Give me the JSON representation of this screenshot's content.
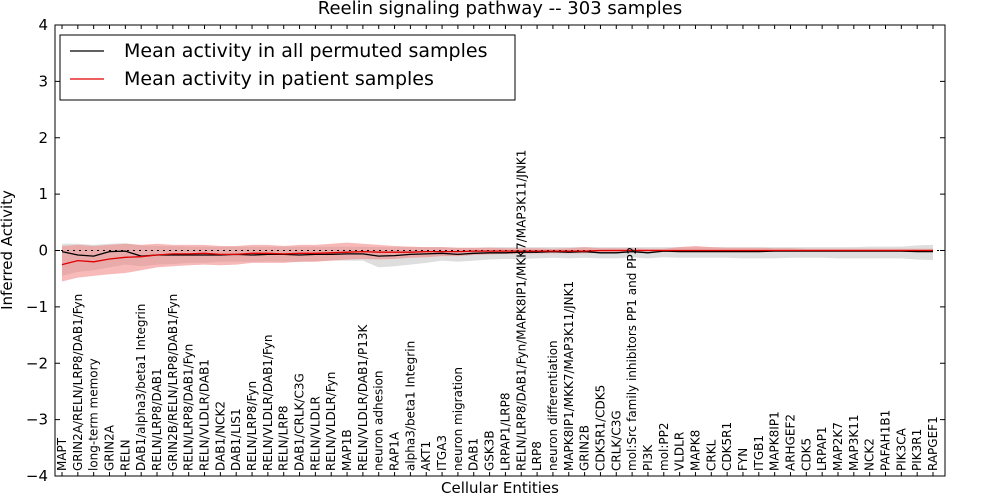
{
  "chart_data": {
    "type": "line",
    "title": "Reelin signaling pathway -- 303 samples",
    "xlabel": "Cellular Entities",
    "ylabel": "Inferred Activity",
    "ylim": [
      -4,
      4
    ],
    "yticks": [
      -4,
      -3,
      -2,
      -1,
      0,
      1,
      2,
      3,
      4
    ],
    "ytick_labels": [
      "−4",
      "−3",
      "−2",
      "−1",
      "0",
      "1",
      "2",
      "3",
      "4"
    ],
    "grid": false,
    "legend_position": "top-left",
    "colors": {
      "permuted_line": "#000000",
      "permuted_band": "#c8c8c8",
      "patient_line": "#e00000",
      "patient_band": "#f28080",
      "zero_line": "#000000"
    },
    "categories": [
      "MAPT",
      "GRIN2A/RELN/LRP8/DAB1/Fyn",
      "long-term memory",
      "GRIN2A",
      "RELN",
      "DAB1/alpha3/beta1 Integrin",
      "RELN/LRP8/DAB1",
      "GRIN2B/RELN/LRP8/DAB1/Fyn",
      "RELN/LRP8/DAB1/Fyn",
      "RELN/VLDLR/DAB1",
      "DAB1/NCK2",
      "DAB1/LIS1",
      "RELN/LRP8/Fyn",
      "RELN/VLDLR/DAB1/Fyn",
      "RELN/LRP8",
      "DAB1/CRLK/C3G",
      "RELN/VLDLR",
      "RELN/VLDLR/Fyn",
      "MAP1B",
      "RELN/VLDLR/DAB1/P13K",
      "neuron adhesion",
      "RAP1A",
      "alpha3/beta1 Integrin",
      "AKT1",
      "ITGA3",
      "neuron migration",
      "DAB1",
      "GSK3B",
      "LRPAP1/LRP8",
      "RELN/LRP8/DAB1/Fyn/MAPK8IP1/MKK7/MAP3K11/JNK1",
      "LRP8",
      "neuron differentiation",
      "MAPK8IP1/MKK7/MAP3K11/JNK1",
      "GRIN2B",
      "CDK5R1/CDK5",
      "CRLK/C3G",
      "mol:Src family inhibitors PP1 and PP2",
      "PI3K",
      "mol:PP2",
      "VLDLR",
      "MAPK8",
      "CRKL",
      "CDK5R1",
      "FYN",
      "ITGB1",
      "MAPK8IP1",
      "ARHGEF2",
      "CDK5",
      "LRPAP1",
      "MAP2K7",
      "MAP3K11",
      "NCK2",
      "PAFAH1B1",
      "PIK3CA",
      "PIK3R1",
      "RAPGEF1"
    ],
    "series": [
      {
        "name": "Mean activity in all permuted samples",
        "values": [
          -0.02,
          -0.08,
          -0.1,
          -0.02,
          -0.01,
          -0.1,
          -0.08,
          -0.08,
          -0.08,
          -0.08,
          -0.08,
          -0.07,
          -0.08,
          -0.07,
          -0.07,
          -0.08,
          -0.07,
          -0.07,
          -0.06,
          -0.06,
          -0.1,
          -0.09,
          -0.07,
          -0.06,
          -0.05,
          -0.07,
          -0.05,
          -0.04,
          -0.04,
          -0.03,
          -0.03,
          -0.02,
          -0.03,
          -0.02,
          -0.04,
          -0.04,
          -0.02,
          -0.04,
          -0.01,
          -0.02,
          -0.02,
          -0.02,
          -0.02,
          -0.02,
          -0.02,
          -0.01,
          -0.01,
          -0.01,
          -0.01,
          -0.01,
          -0.01,
          -0.01,
          -0.01,
          -0.01,
          -0.02,
          -0.02
        ],
        "lower": [
          -0.45,
          -0.38,
          -0.35,
          -0.3,
          -0.25,
          -0.28,
          -0.25,
          -0.24,
          -0.22,
          -0.22,
          -0.2,
          -0.2,
          -0.2,
          -0.19,
          -0.2,
          -0.2,
          -0.19,
          -0.18,
          -0.18,
          -0.18,
          -0.3,
          -0.28,
          -0.25,
          -0.22,
          -0.18,
          -0.2,
          -0.18,
          -0.16,
          -0.15,
          -0.15,
          -0.14,
          -0.13,
          -0.14,
          -0.13,
          -0.14,
          -0.14,
          -0.12,
          -0.14,
          -0.12,
          -0.13,
          -0.13,
          -0.13,
          -0.13,
          -0.14,
          -0.14,
          -0.14,
          -0.13,
          -0.13,
          -0.13,
          -0.14,
          -0.14,
          -0.14,
          -0.14,
          -0.14,
          -0.16,
          -0.17
        ],
        "upper": [
          0.12,
          0.12,
          0.1,
          0.12,
          0.13,
          0.09,
          0.08,
          0.08,
          0.07,
          0.07,
          0.07,
          0.07,
          0.07,
          0.07,
          0.07,
          0.07,
          0.07,
          0.07,
          0.07,
          0.07,
          0.06,
          0.06,
          0.06,
          0.06,
          0.06,
          0.05,
          0.05,
          0.06,
          0.06,
          0.06,
          0.06,
          0.06,
          0.06,
          0.06,
          0.06,
          0.06,
          0.06,
          0.06,
          0.06,
          0.06,
          0.06,
          0.06,
          0.06,
          0.06,
          0.06,
          0.06,
          0.06,
          0.06,
          0.06,
          0.06,
          0.06,
          0.07,
          0.07,
          0.07,
          0.09,
          0.1
        ]
      },
      {
        "name": "Mean activity in patient samples",
        "values": [
          -0.25,
          -0.18,
          -0.2,
          -0.15,
          -0.12,
          -0.11,
          -0.08,
          -0.06,
          -0.06,
          -0.05,
          -0.07,
          -0.07,
          -0.05,
          -0.05,
          -0.06,
          -0.05,
          -0.05,
          -0.04,
          -0.03,
          -0.02,
          -0.03,
          -0.03,
          -0.03,
          -0.02,
          -0.02,
          -0.02,
          -0.01,
          -0.01,
          -0.01,
          -0.01,
          -0.01,
          -0.01,
          -0.01,
          -0.01,
          0.0,
          0.0,
          0.0,
          0.0,
          0.0,
          0.0,
          0.0,
          0.0,
          0.0,
          0.0,
          0.0,
          0.0,
          0.0,
          0.0,
          0.0,
          0.0,
          0.0,
          0.0,
          0.0,
          0.0,
          0.0,
          0.0
        ],
        "lower": [
          -0.55,
          -0.48,
          -0.45,
          -0.42,
          -0.4,
          -0.35,
          -0.3,
          -0.28,
          -0.26,
          -0.25,
          -0.26,
          -0.25,
          -0.22,
          -0.22,
          -0.22,
          -0.2,
          -0.2,
          -0.18,
          -0.16,
          -0.15,
          -0.16,
          -0.15,
          -0.13,
          -0.12,
          -0.1,
          -0.1,
          -0.08,
          -0.07,
          -0.06,
          -0.06,
          -0.05,
          -0.05,
          -0.05,
          -0.05,
          -0.03,
          -0.03,
          -0.02,
          -0.02,
          -0.02,
          -0.02,
          -0.02,
          -0.02,
          -0.02,
          -0.02,
          -0.02,
          -0.02,
          -0.02,
          -0.02,
          -0.02,
          -0.02,
          -0.02,
          -0.02,
          -0.02,
          -0.02,
          -0.02,
          -0.02
        ],
        "upper": [
          0.08,
          0.1,
          0.08,
          0.1,
          0.12,
          0.1,
          0.12,
          0.1,
          0.1,
          0.1,
          0.08,
          0.08,
          0.1,
          0.1,
          0.08,
          0.1,
          0.1,
          0.12,
          0.14,
          0.12,
          0.1,
          0.08,
          0.07,
          0.06,
          0.06,
          0.05,
          0.05,
          0.05,
          0.04,
          0.04,
          0.04,
          0.03,
          0.04,
          0.06,
          0.04,
          0.04,
          0.04,
          0.03,
          0.03,
          0.06,
          0.08,
          0.06,
          0.05,
          0.05,
          0.05,
          0.04,
          0.04,
          0.03,
          0.03,
          0.03,
          0.03,
          0.03,
          0.03,
          0.03,
          0.03,
          0.03
        ]
      }
    ]
  }
}
